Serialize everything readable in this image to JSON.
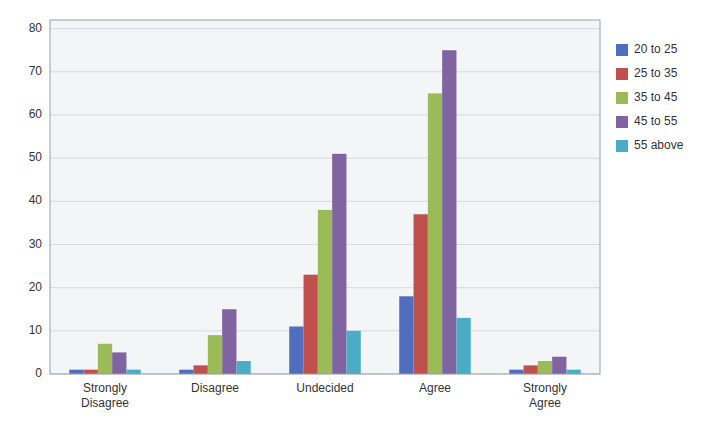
{
  "chart_data": {
    "type": "bar",
    "categories": [
      "Strongly\nDisagree",
      "Disagree",
      "Undecided",
      "Agree",
      "Strongly\nAgree"
    ],
    "series": [
      {
        "name": "20 to 25",
        "color": "#4F6EBD",
        "values": [
          1,
          1,
          11,
          18,
          1
        ]
      },
      {
        "name": "25 to 35",
        "color": "#C0504D",
        "values": [
          1,
          2,
          23,
          37,
          2
        ]
      },
      {
        "name": "35 to 45",
        "color": "#9BBB59",
        "values": [
          7,
          9,
          38,
          65,
          3
        ]
      },
      {
        "name": "45 to 55",
        "color": "#8064A2",
        "values": [
          5,
          15,
          51,
          75,
          4
        ]
      },
      {
        "name": "55 above",
        "color": "#4BACC6",
        "values": [
          1,
          3,
          10,
          13,
          1
        ]
      }
    ],
    "ylim": [
      0,
      82
    ],
    "yticks": [
      0,
      10,
      20,
      30,
      40,
      50,
      60,
      70,
      80
    ],
    "grid": true,
    "legend": "right"
  }
}
